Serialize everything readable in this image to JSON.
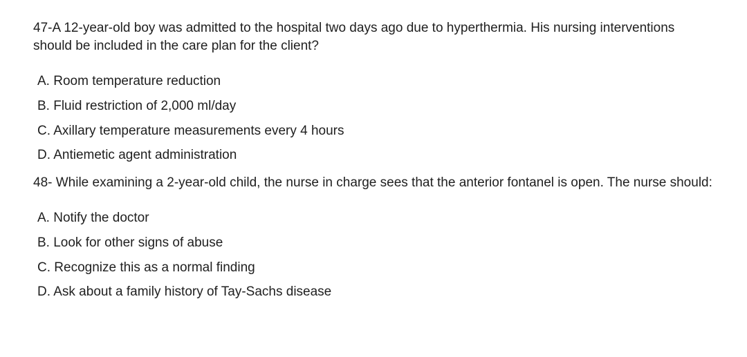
{
  "font": {
    "family": "Segoe UI / system sans-serif",
    "size_pt": 14,
    "color": "#202020"
  },
  "background_color": "#ffffff",
  "questions": [
    {
      "number_prefix": "47-",
      "stem": "47-A 12-year-old boy was admitted to the hospital two days ago due to hyperthermia. His nursing interventions should be included in the care plan for the client?",
      "options": {
        "A": "A. Room temperature reduction",
        "B": "B. Fluid restriction of 2,000 ml/day",
        "C": "C. Axillary temperature measurements every 4 hours",
        "D": "D. Antiemetic agent administration"
      }
    },
    {
      "number_prefix": "48-",
      "stem": "48- While examining a 2-year-old child, the nurse in charge sees that the anterior fontanel is open. The nurse should:",
      "options": {
        "A": "A. Notify the doctor",
        "B": "B. Look for other signs of abuse",
        "C": "C. Recognize this as a normal finding",
        "D": "D. Ask about a family history of Tay-Sachs disease"
      }
    }
  ]
}
